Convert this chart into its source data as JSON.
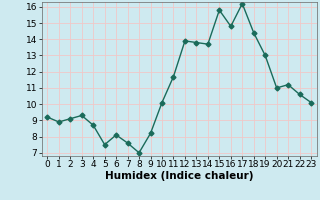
{
  "x": [
    0,
    1,
    2,
    3,
    4,
    5,
    6,
    7,
    8,
    9,
    10,
    11,
    12,
    13,
    14,
    15,
    16,
    17,
    18,
    19,
    20,
    21,
    22,
    23
  ],
  "y": [
    9.2,
    8.9,
    9.1,
    9.3,
    8.7,
    7.5,
    8.1,
    7.6,
    7.0,
    8.2,
    10.1,
    11.7,
    13.9,
    13.8,
    13.7,
    15.8,
    14.8,
    16.2,
    14.4,
    13.0,
    11.0,
    11.2,
    10.6,
    10.1
  ],
  "xlim": [
    -0.5,
    23.5
  ],
  "ylim": [
    6.8,
    16.3
  ],
  "yticks": [
    7,
    8,
    9,
    10,
    11,
    12,
    13,
    14,
    15,
    16
  ],
  "xticks": [
    0,
    1,
    2,
    3,
    4,
    5,
    6,
    7,
    8,
    9,
    10,
    11,
    12,
    13,
    14,
    15,
    16,
    17,
    18,
    19,
    20,
    21,
    22,
    23
  ],
  "xlabel": "Humidex (Indice chaleur)",
  "line_color": "#1a6b5a",
  "marker": "D",
  "marker_size": 2.5,
  "bg_color": "#ceeaf0",
  "grid_color": "#f0c8c8",
  "xlabel_fontsize": 7.5,
  "tick_fontsize": 6.5,
  "line_width": 1.0
}
